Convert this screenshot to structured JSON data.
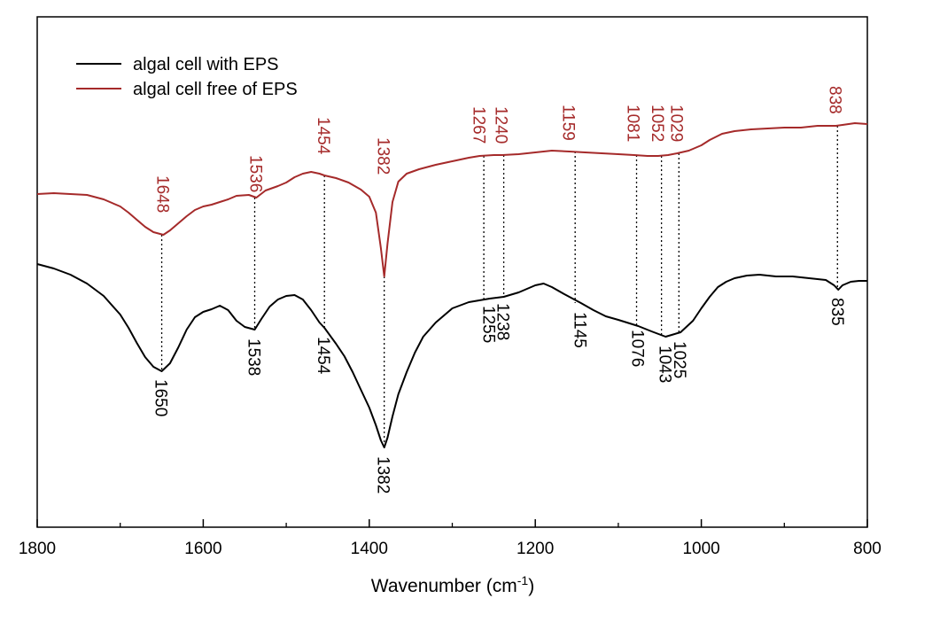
{
  "chart_data": {
    "type": "line",
    "title": "",
    "xlabel": "Wavenumber (cm",
    "xlabel_superscript": "-1",
    "xlabel_suffix": ")",
    "ylabel": "",
    "xlim": [
      1800,
      800
    ],
    "x_reversed": true,
    "y_ticks_shown": false,
    "grid": false,
    "legend_position": "top-left",
    "x_ticks": [
      1800,
      1600,
      1400,
      1200,
      1000,
      800
    ],
    "x_tick_labels": [
      "1800",
      "1600",
      "1400",
      "1200",
      "1000",
      "800"
    ],
    "series": [
      {
        "name": "algal cell with EPS",
        "color": "#000000",
        "points": [
          [
            1800,
            298
          ],
          [
            1780,
            303
          ],
          [
            1760,
            310
          ],
          [
            1740,
            320
          ],
          [
            1720,
            334
          ],
          [
            1700,
            355
          ],
          [
            1690,
            370
          ],
          [
            1680,
            387
          ],
          [
            1670,
            403
          ],
          [
            1660,
            414
          ],
          [
            1650,
            419
          ],
          [
            1640,
            410
          ],
          [
            1630,
            392
          ],
          [
            1620,
            372
          ],
          [
            1610,
            358
          ],
          [
            1600,
            352
          ],
          [
            1590,
            349
          ],
          [
            1580,
            345
          ],
          [
            1570,
            350
          ],
          [
            1560,
            362
          ],
          [
            1550,
            369
          ],
          [
            1538,
            372
          ],
          [
            1530,
            360
          ],
          [
            1520,
            346
          ],
          [
            1510,
            338
          ],
          [
            1500,
            334
          ],
          [
            1490,
            333
          ],
          [
            1480,
            338
          ],
          [
            1470,
            350
          ],
          [
            1460,
            364
          ],
          [
            1454,
            370
          ],
          [
            1440,
            388
          ],
          [
            1430,
            402
          ],
          [
            1420,
            420
          ],
          [
            1410,
            440
          ],
          [
            1400,
            460
          ],
          [
            1392,
            480
          ],
          [
            1386,
            497
          ],
          [
            1382,
            505
          ],
          [
            1378,
            494
          ],
          [
            1372,
            470
          ],
          [
            1365,
            445
          ],
          [
            1355,
            420
          ],
          [
            1345,
            398
          ],
          [
            1335,
            380
          ],
          [
            1320,
            364
          ],
          [
            1300,
            348
          ],
          [
            1280,
            341
          ],
          [
            1255,
            337
          ],
          [
            1238,
            335
          ],
          [
            1220,
            330
          ],
          [
            1200,
            322
          ],
          [
            1190,
            320
          ],
          [
            1180,
            324
          ],
          [
            1165,
            332
          ],
          [
            1145,
            342
          ],
          [
            1130,
            350
          ],
          [
            1115,
            357
          ],
          [
            1100,
            361
          ],
          [
            1076,
            368
          ],
          [
            1060,
            374
          ],
          [
            1043,
            380
          ],
          [
            1025,
            375
          ],
          [
            1010,
            362
          ],
          [
            1000,
            348
          ],
          [
            990,
            335
          ],
          [
            980,
            324
          ],
          [
            970,
            318
          ],
          [
            960,
            314
          ],
          [
            945,
            311
          ],
          [
            930,
            310
          ],
          [
            910,
            312
          ],
          [
            890,
            312
          ],
          [
            870,
            314
          ],
          [
            850,
            316
          ],
          [
            840,
            322
          ],
          [
            835,
            327
          ],
          [
            830,
            322
          ],
          [
            820,
            318
          ],
          [
            810,
            317
          ],
          [
            800,
            317
          ]
        ]
      },
      {
        "name": "algal cell free of EPS",
        "color": "#a52a2a",
        "points": [
          [
            1800,
            219
          ],
          [
            1780,
            218
          ],
          [
            1760,
            219
          ],
          [
            1740,
            220
          ],
          [
            1720,
            225
          ],
          [
            1700,
            233
          ],
          [
            1690,
            240
          ],
          [
            1680,
            248
          ],
          [
            1670,
            256
          ],
          [
            1660,
            262
          ],
          [
            1648,
            265
          ],
          [
            1640,
            260
          ],
          [
            1630,
            252
          ],
          [
            1620,
            244
          ],
          [
            1610,
            237
          ],
          [
            1600,
            233
          ],
          [
            1590,
            231
          ],
          [
            1580,
            228
          ],
          [
            1570,
            225
          ],
          [
            1560,
            221
          ],
          [
            1545,
            220
          ],
          [
            1536,
            223
          ],
          [
            1525,
            215
          ],
          [
            1510,
            210
          ],
          [
            1500,
            206
          ],
          [
            1490,
            200
          ],
          [
            1480,
            196
          ],
          [
            1470,
            194
          ],
          [
            1460,
            196
          ],
          [
            1454,
            198
          ],
          [
            1440,
            201
          ],
          [
            1425,
            206
          ],
          [
            1410,
            214
          ],
          [
            1400,
            222
          ],
          [
            1392,
            240
          ],
          [
            1386,
            280
          ],
          [
            1382,
            312
          ],
          [
            1378,
            275
          ],
          [
            1372,
            228
          ],
          [
            1365,
            205
          ],
          [
            1355,
            196
          ],
          [
            1340,
            191
          ],
          [
            1320,
            186
          ],
          [
            1300,
            182
          ],
          [
            1280,
            178
          ],
          [
            1267,
            176
          ],
          [
            1250,
            175
          ],
          [
            1240,
            175
          ],
          [
            1220,
            174
          ],
          [
            1200,
            172
          ],
          [
            1180,
            170
          ],
          [
            1159,
            171
          ],
          [
            1140,
            172
          ],
          [
            1120,
            173
          ],
          [
            1100,
            174
          ],
          [
            1081,
            175
          ],
          [
            1065,
            176
          ],
          [
            1052,
            176
          ],
          [
            1040,
            175
          ],
          [
            1029,
            173
          ],
          [
            1015,
            170
          ],
          [
            1000,
            164
          ],
          [
            990,
            158
          ],
          [
            975,
            151
          ],
          [
            960,
            148
          ],
          [
            940,
            146
          ],
          [
            920,
            145
          ],
          [
            900,
            144
          ],
          [
            880,
            144
          ],
          [
            860,
            142
          ],
          [
            845,
            142
          ],
          [
            838,
            142
          ],
          [
            830,
            141
          ],
          [
            815,
            139
          ],
          [
            800,
            140
          ]
        ]
      }
    ],
    "annotations_red": [
      {
        "x": 1648,
        "label": "1648"
      },
      {
        "x": 1536,
        "label": "1536"
      },
      {
        "x": 1454,
        "label": "1454"
      },
      {
        "x": 1382,
        "label": "1382"
      },
      {
        "x": 1267,
        "label": "1267"
      },
      {
        "x": 1240,
        "label": "1240"
      },
      {
        "x": 1159,
        "label": "1159"
      },
      {
        "x": 1081,
        "label": "1081"
      },
      {
        "x": 1052,
        "label": "1052"
      },
      {
        "x": 1029,
        "label": "1029"
      },
      {
        "x": 838,
        "label": "838"
      }
    ],
    "annotations_black": [
      {
        "x": 1650,
        "label": "1650"
      },
      {
        "x": 1538,
        "label": "1538"
      },
      {
        "x": 1454,
        "label": "1454"
      },
      {
        "x": 1382,
        "label": "1382"
      },
      {
        "x": 1255,
        "label": "1255"
      },
      {
        "x": 1238,
        "label": "1238"
      },
      {
        "x": 1145,
        "label": "1145"
      },
      {
        "x": 1076,
        "label": "1076"
      },
      {
        "x": 1043,
        "label": "1043"
      },
      {
        "x": 1025,
        "label": "1025"
      },
      {
        "x": 835,
        "label": "835"
      }
    ],
    "dotted_guides": [
      {
        "x": 1650,
        "y_top": 265,
        "y_bottom": 419
      },
      {
        "x": 1538,
        "y_top": 223,
        "y_bottom": 372
      },
      {
        "x": 1454,
        "y_top": 198,
        "y_bottom": 370
      },
      {
        "x": 1382,
        "y_top": 312,
        "y_bottom": 505
      },
      {
        "x": 1262,
        "y_top": 176,
        "y_bottom": 337
      },
      {
        "x": 1238,
        "y_top": 175,
        "y_bottom": 335
      },
      {
        "x": 1152,
        "y_top": 171,
        "y_bottom": 342
      },
      {
        "x": 1078,
        "y_top": 175,
        "y_bottom": 368
      },
      {
        "x": 1048,
        "y_top": 176,
        "y_bottom": 380
      },
      {
        "x": 1027,
        "y_top": 173,
        "y_bottom": 375
      },
      {
        "x": 836,
        "y_top": 142,
        "y_bottom": 327
      }
    ]
  }
}
